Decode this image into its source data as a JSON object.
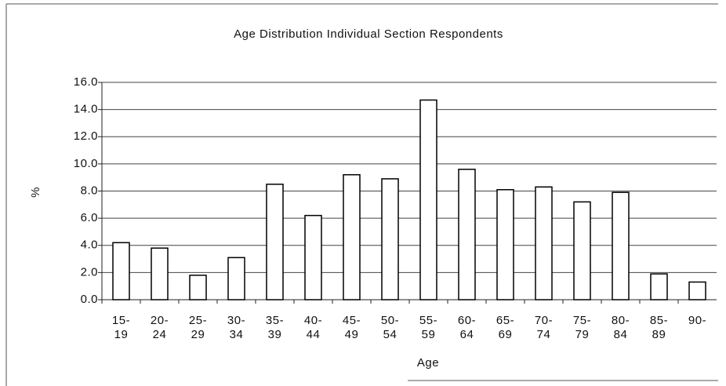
{
  "chart_data": {
    "type": "bar",
    "title": "Age Distribution Individual Section Respondents",
    "x_label": "Age",
    "y_label": "%",
    "categories": [
      "15-\n19",
      "20-\n24",
      "25-\n29",
      "30-\n34",
      "35-\n39",
      "40-\n44",
      "45-\n49",
      "50-\n54",
      "55-\n59",
      "60-\n64",
      "65-\n69",
      "70-\n74",
      "75-\n79",
      "80-\n84",
      "85-\n89",
      "90-"
    ],
    "values": [
      4.2,
      3.8,
      1.8,
      3.1,
      8.5,
      6.2,
      9.2,
      8.9,
      14.7,
      9.6,
      8.1,
      8.3,
      7.2,
      7.9,
      1.9,
      1.3
    ],
    "color": "#ffffff",
    "ylim": [
      0,
      16
    ],
    "yticks": [
      {
        "value": 0,
        "label": "0.0"
      },
      {
        "value": 2,
        "label": "2.0"
      },
      {
        "value": 4,
        "label": "4.0"
      },
      {
        "value": 6,
        "label": "6.0"
      },
      {
        "value": 8,
        "label": "8.0"
      },
      {
        "value": 10,
        "label": "10.0"
      },
      {
        "value": 12,
        "label": "12.0"
      },
      {
        "value": 14,
        "label": "14.0"
      },
      {
        "value": 16,
        "label": "16.0"
      }
    ],
    "grid": true
  }
}
